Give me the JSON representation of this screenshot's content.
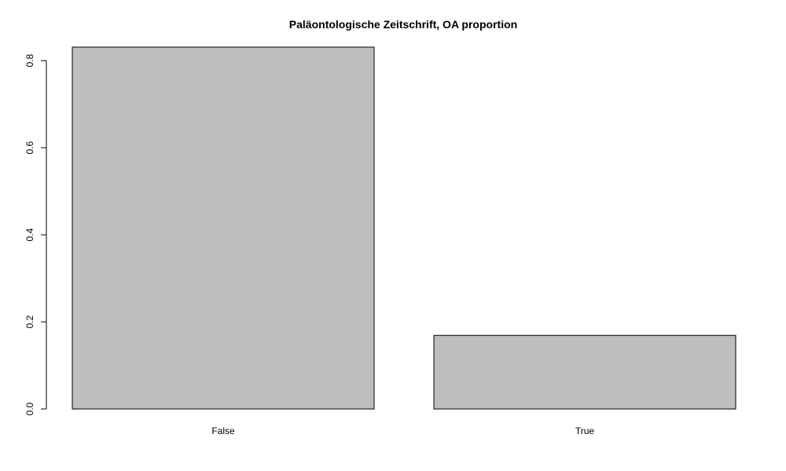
{
  "chart_data": {
    "type": "bar",
    "title": "Paläontologische Zeitschrift, OA proportion",
    "categories": [
      "False",
      "True"
    ],
    "values": [
      0.831,
      0.169
    ],
    "ylim": [
      0,
      0.831
    ],
    "yticks": [
      0.0,
      0.2,
      0.4,
      0.6,
      0.8
    ],
    "ytick_labels": [
      "0.0",
      "0.2",
      "0.4",
      "0.6",
      "0.8"
    ],
    "xlabel": "",
    "ylabel": "",
    "grid": false,
    "legend": "none",
    "bar_color": "#bebebe",
    "border_color": "#000000"
  }
}
